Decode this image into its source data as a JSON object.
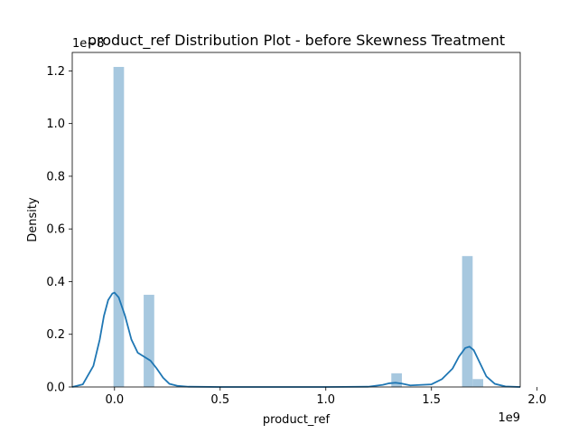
{
  "chart_data": {
    "type": "bar",
    "title": "product_ref Distribution Plot - before Skewness Treatment",
    "xlabel": "product_ref",
    "ylabel": "Density",
    "x_offset_label": "1e9",
    "y_offset_label": "1e−8",
    "xlim": [
      -0.2,
      1.92
    ],
    "ylim": [
      0,
      1.27
    ],
    "x_ticks": [
      0.0,
      0.5,
      1.0,
      1.5,
      2.0
    ],
    "x_tick_labels": [
      "0.0",
      "0.5",
      "1.0",
      "1.5",
      "2.0"
    ],
    "y_ticks": [
      0.0,
      0.2,
      0.4,
      0.6,
      0.8,
      1.0,
      1.2
    ],
    "y_tick_labels": [
      "0.0",
      "0.2",
      "0.4",
      "0.6",
      "0.8",
      "1.0",
      "1.2"
    ],
    "histogram": {
      "color": "#a7c8df",
      "bins": [
        {
          "x0": -0.005,
          "x1": 0.045,
          "density": 1.215
        },
        {
          "x0": 0.138,
          "x1": 0.188,
          "density": 0.35
        },
        {
          "x0": 1.31,
          "x1": 1.36,
          "density": 0.052
        },
        {
          "x0": 1.645,
          "x1": 1.695,
          "density": 0.497
        },
        {
          "x0": 1.695,
          "x1": 1.745,
          "density": 0.03
        }
      ]
    },
    "kde": {
      "color": "#1f77b4",
      "x": [
        -0.2,
        -0.15,
        -0.1,
        -0.07,
        -0.05,
        -0.03,
        -0.01,
        0.0,
        0.02,
        0.05,
        0.08,
        0.11,
        0.14,
        0.17,
        0.2,
        0.23,
        0.26,
        0.3,
        0.35,
        0.5,
        1.0,
        1.2,
        1.27,
        1.3,
        1.33,
        1.36,
        1.4,
        1.5,
        1.55,
        1.6,
        1.63,
        1.66,
        1.68,
        1.7,
        1.73,
        1.76,
        1.8,
        1.85,
        1.92
      ],
      "y": [
        0.0,
        0.01,
        0.08,
        0.18,
        0.27,
        0.33,
        0.355,
        0.358,
        0.34,
        0.27,
        0.18,
        0.13,
        0.115,
        0.1,
        0.07,
        0.035,
        0.012,
        0.004,
        0.001,
        0.0,
        0.0,
        0.001,
        0.008,
        0.014,
        0.016,
        0.013,
        0.006,
        0.01,
        0.03,
        0.07,
        0.115,
        0.148,
        0.153,
        0.14,
        0.09,
        0.04,
        0.012,
        0.002,
        0.0
      ]
    }
  }
}
